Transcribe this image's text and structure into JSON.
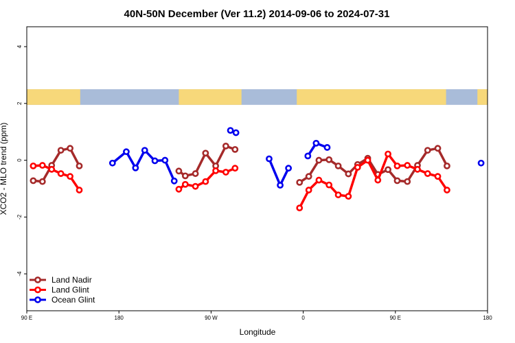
{
  "chart_data": {
    "type": "line",
    "title": "40N-50N December (Ver 11.2)   2014-09-06 to 2024-07-31",
    "xlabel": "Longitude",
    "ylabel": "XCO2 - MLO trend (ppm)",
    "xlim": [
      0,
      500
    ],
    "ylim": [
      -5.3,
      4.7
    ],
    "x_ticks": [
      {
        "x": 0,
        "label": "90 E"
      },
      {
        "x": 100,
        "label": "180"
      },
      {
        "x": 200,
        "label": "90 W"
      },
      {
        "x": 300,
        "label": "0"
      },
      {
        "x": 400,
        "label": "90 E"
      },
      {
        "x": 500,
        "label": "180"
      }
    ],
    "y_ticks": [
      {
        "y": -4,
        "label": "-4"
      },
      {
        "y": -2,
        "label": "-2"
      },
      {
        "y": 0,
        "label": "0"
      },
      {
        "y": 2,
        "label": "2"
      },
      {
        "y": 4,
        "label": "4"
      }
    ],
    "grid": false,
    "map_band": {
      "y_range": [
        1.95,
        2.5
      ],
      "ocean_color": "#a9bcd9",
      "land_color": "#f7d87a"
    },
    "legend_position": "bottom-left",
    "series": [
      {
        "name": "Land Nadir",
        "color": "#a52a2a",
        "segments": [
          [
            [
              7,
              -0.72
            ],
            [
              17,
              -0.75
            ],
            [
              27,
              -0.18
            ],
            [
              37,
              0.35
            ],
            [
              47,
              0.42
            ],
            [
              57,
              -0.2
            ]
          ],
          [
            [
              165,
              -0.38
            ],
            [
              172,
              -0.55
            ],
            [
              183,
              -0.47
            ],
            [
              194,
              0.25
            ],
            [
              205,
              -0.2
            ],
            [
              216,
              0.5
            ],
            [
              226,
              0.38
            ]
          ],
          [
            [
              296,
              -0.78
            ],
            [
              306,
              -0.57
            ],
            [
              317,
              0.0
            ],
            [
              328,
              0.02
            ],
            [
              338,
              -0.2
            ],
            [
              349,
              -0.48
            ],
            [
              359,
              -0.15
            ],
            [
              370,
              0.07
            ],
            [
              381,
              -0.5
            ],
            [
              392,
              -0.33
            ],
            [
              402,
              -0.72
            ],
            [
              413,
              -0.75
            ],
            [
              424,
              -0.18
            ],
            [
              435,
              0.35
            ],
            [
              446,
              0.42
            ],
            [
              456,
              -0.2
            ]
          ]
        ]
      },
      {
        "name": "Land Glint",
        "color": "#ff0000",
        "segments": [
          [
            [
              7,
              -0.2
            ],
            [
              17,
              -0.18
            ],
            [
              27,
              -0.32
            ],
            [
              37,
              -0.47
            ],
            [
              47,
              -0.57
            ],
            [
              57,
              -1.05
            ]
          ],
          [
            [
              165,
              -1.02
            ],
            [
              172,
              -0.85
            ],
            [
              183,
              -0.92
            ],
            [
              194,
              -0.75
            ],
            [
              205,
              -0.37
            ],
            [
              216,
              -0.42
            ],
            [
              226,
              -0.28
            ]
          ],
          [
            [
              296,
              -1.68
            ],
            [
              306,
              -1.05
            ],
            [
              317,
              -0.7
            ],
            [
              328,
              -0.87
            ],
            [
              338,
              -1.22
            ],
            [
              349,
              -1.27
            ],
            [
              359,
              -0.25
            ],
            [
              370,
              0.0
            ],
            [
              381,
              -0.7
            ],
            [
              392,
              0.22
            ],
            [
              402,
              -0.2
            ],
            [
              413,
              -0.18
            ],
            [
              424,
              -0.32
            ],
            [
              435,
              -0.47
            ],
            [
              446,
              -0.57
            ],
            [
              456,
              -1.05
            ]
          ]
        ]
      },
      {
        "name": "Ocean Glint",
        "color": "#0000ee",
        "segments": [
          [
            [
              93,
              -0.1
            ],
            [
              108,
              0.3
            ],
            [
              118,
              -0.27
            ],
            [
              128,
              0.35
            ],
            [
              139,
              -0.02
            ],
            [
              150,
              0.0
            ],
            [
              160,
              -0.73
            ]
          ],
          [
            [
              221,
              1.05
            ],
            [
              227,
              0.97
            ]
          ],
          [
            [
              263,
              0.05
            ],
            [
              275,
              -0.88
            ],
            [
              284,
              -0.28
            ]
          ],
          [
            [
              305,
              0.15
            ],
            [
              314,
              0.6
            ],
            [
              326,
              0.45
            ]
          ],
          [
            [
              493,
              -0.1
            ]
          ]
        ]
      }
    ]
  }
}
